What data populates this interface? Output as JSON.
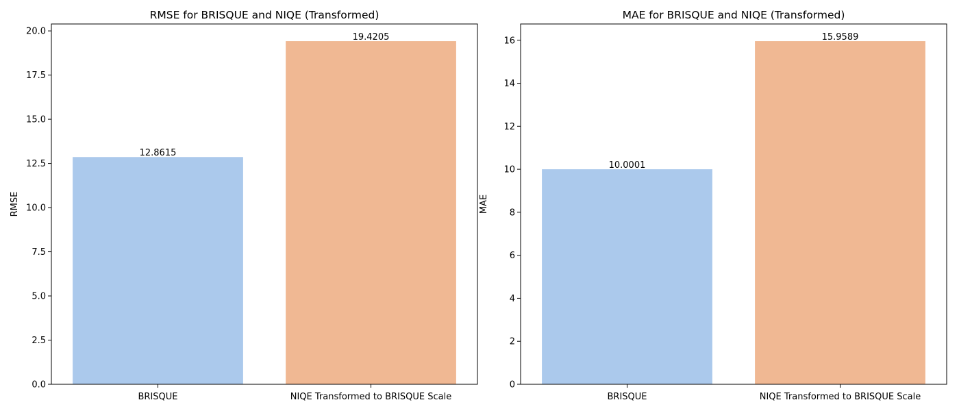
{
  "chart_data": [
    {
      "type": "bar",
      "title": "RMSE for BRISQUE and NIQE (Transformed)",
      "xlabel": "",
      "ylabel": "RMSE",
      "categories": [
        "BRISQUE",
        "NIQE Transformed to BRISQUE Scale"
      ],
      "values": [
        12.8615,
        19.4205
      ],
      "value_labels": [
        "12.8615",
        "19.4205"
      ],
      "colors": [
        "#abc9ec",
        "#f0b893"
      ],
      "ylim": [
        0,
        20.392
      ],
      "yticks": [
        0,
        2.5,
        5,
        7.5,
        10,
        12.5,
        15,
        17.5,
        20
      ],
      "ytick_labels": [
        "0.0",
        "2.5",
        "5.0",
        "7.5",
        "10.0",
        "12.5",
        "15.0",
        "17.5",
        "20.0"
      ],
      "grid": false,
      "legend": "none"
    },
    {
      "type": "bar",
      "title": "MAE for BRISQUE and NIQE (Transformed)",
      "xlabel": "",
      "ylabel": "MAE",
      "categories": [
        "BRISQUE",
        "NIQE Transformed to BRISQUE Scale"
      ],
      "values": [
        10.0001,
        15.9589
      ],
      "value_labels": [
        "10.0001",
        "15.9589"
      ],
      "colors": [
        "#abc9ec",
        "#f0b893"
      ],
      "ylim": [
        0,
        16.757
      ],
      "yticks": [
        0,
        2,
        4,
        6,
        8,
        10,
        12,
        14,
        16
      ],
      "ytick_labels": [
        "0",
        "2",
        "4",
        "6",
        "8",
        "10",
        "12",
        "14",
        "16"
      ],
      "grid": false,
      "legend": "none"
    }
  ]
}
